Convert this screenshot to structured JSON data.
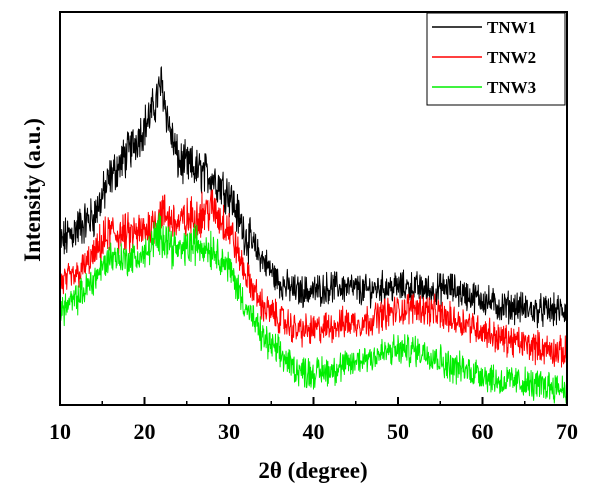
{
  "chart_data": {
    "type": "line",
    "title": "",
    "xlabel": "2θ (degree)",
    "ylabel": "Intensity (a.u.)",
    "xlim": [
      10,
      70
    ],
    "ylim": [
      0,
      100
    ],
    "xticks": [
      "10",
      "20",
      "30",
      "40",
      "50",
      "60",
      "70"
    ],
    "y_ticklabels": "none",
    "grid": false,
    "legend_position": "top-right",
    "series": [
      {
        "name": "TNW1",
        "color": "#000000",
        "x": [
          10,
          12,
          14,
          16,
          18,
          20,
          21,
          22,
          23,
          24,
          26,
          28,
          30,
          32,
          34,
          36,
          38,
          40,
          42,
          44,
          46,
          48,
          50,
          52,
          54,
          56,
          58,
          60,
          62,
          64,
          66,
          68,
          70
        ],
        "y": [
          41,
          45,
          48,
          58,
          64,
          71,
          75,
          82,
          70,
          62,
          60,
          58,
          54,
          43,
          37,
          31,
          29,
          29,
          30,
          30,
          29,
          30,
          30,
          30,
          29,
          30,
          28,
          27,
          25,
          25,
          24,
          24,
          24
        ]
      },
      {
        "name": "TNW2",
        "color": "#ff0000",
        "x": [
          10,
          12,
          14,
          16,
          18,
          20,
          22,
          24,
          26,
          28,
          30,
          32,
          34,
          36,
          38,
          40,
          42,
          44,
          46,
          48,
          50,
          52,
          54,
          56,
          58,
          60,
          62,
          64,
          66,
          68,
          70
        ],
        "y": [
          31,
          33,
          38,
          44,
          43,
          44,
          49,
          46,
          48,
          50,
          45,
          33,
          25,
          22,
          19,
          19,
          20,
          21,
          21,
          23,
          24,
          25,
          24,
          22,
          21,
          19,
          17,
          16,
          15,
          14,
          13
        ]
      },
      {
        "name": "TNW3",
        "color": "#00ee00",
        "x": [
          10,
          12,
          14,
          16,
          18,
          20,
          22,
          24,
          26,
          28,
          30,
          32,
          34,
          36,
          38,
          40,
          42,
          44,
          46,
          48,
          50,
          52,
          54,
          56,
          58,
          60,
          62,
          64,
          66,
          68,
          70
        ],
        "y": [
          24,
          27,
          32,
          38,
          37,
          38,
          44,
          39,
          41,
          40,
          35,
          25,
          17,
          13,
          9,
          8,
          9,
          10,
          12,
          13,
          14,
          14,
          13,
          10,
          9,
          8,
          6,
          6,
          5,
          5,
          4
        ]
      }
    ]
  }
}
